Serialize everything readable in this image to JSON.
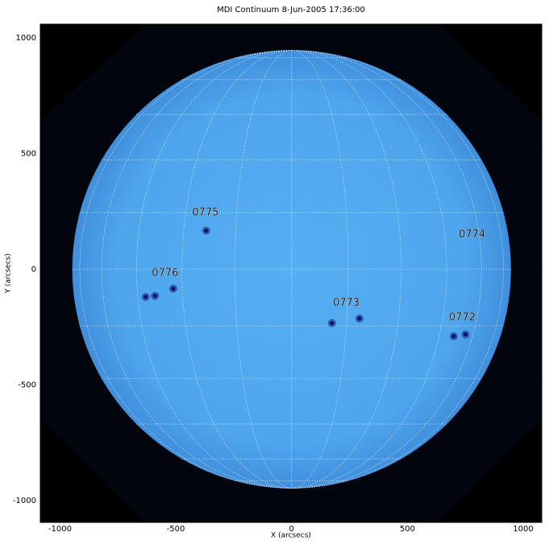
{
  "chart_data": {
    "type": "solar-disk",
    "title": "MDI Continuum 8-Jun-2005 17:36:00",
    "x_label": "X (arcsecs)",
    "y_label": "Y (arcsecs)",
    "xlim": [
      -1085,
      1080
    ],
    "ylim": [
      -1095,
      1060
    ],
    "xticks": [
      -1000,
      -500,
      0,
      500,
      1000
    ],
    "yticks": [
      -1000,
      -500,
      0,
      500,
      1000
    ],
    "disk_radius": 947,
    "disk_color": "#52aaf0",
    "grid": true,
    "regions": [
      {
        "label": "0775",
        "x": -372,
        "y": 244
      },
      {
        "label": "0776",
        "x": -546,
        "y": -17
      },
      {
        "label": "0773",
        "x": 236,
        "y": -146
      },
      {
        "label": "0772",
        "x": 737,
        "y": -209
      },
      {
        "label": "0774",
        "x": 779,
        "y": 150
      }
    ],
    "sunspots": [
      {
        "x": -369,
        "y": 167
      },
      {
        "x": -511,
        "y": -84
      },
      {
        "x": -590,
        "y": -115
      },
      {
        "x": -630,
        "y": -120
      },
      {
        "x": 174,
        "y": -233
      },
      {
        "x": 293,
        "y": -213
      },
      {
        "x": 751,
        "y": -282
      },
      {
        "x": 700,
        "y": -290
      }
    ]
  }
}
